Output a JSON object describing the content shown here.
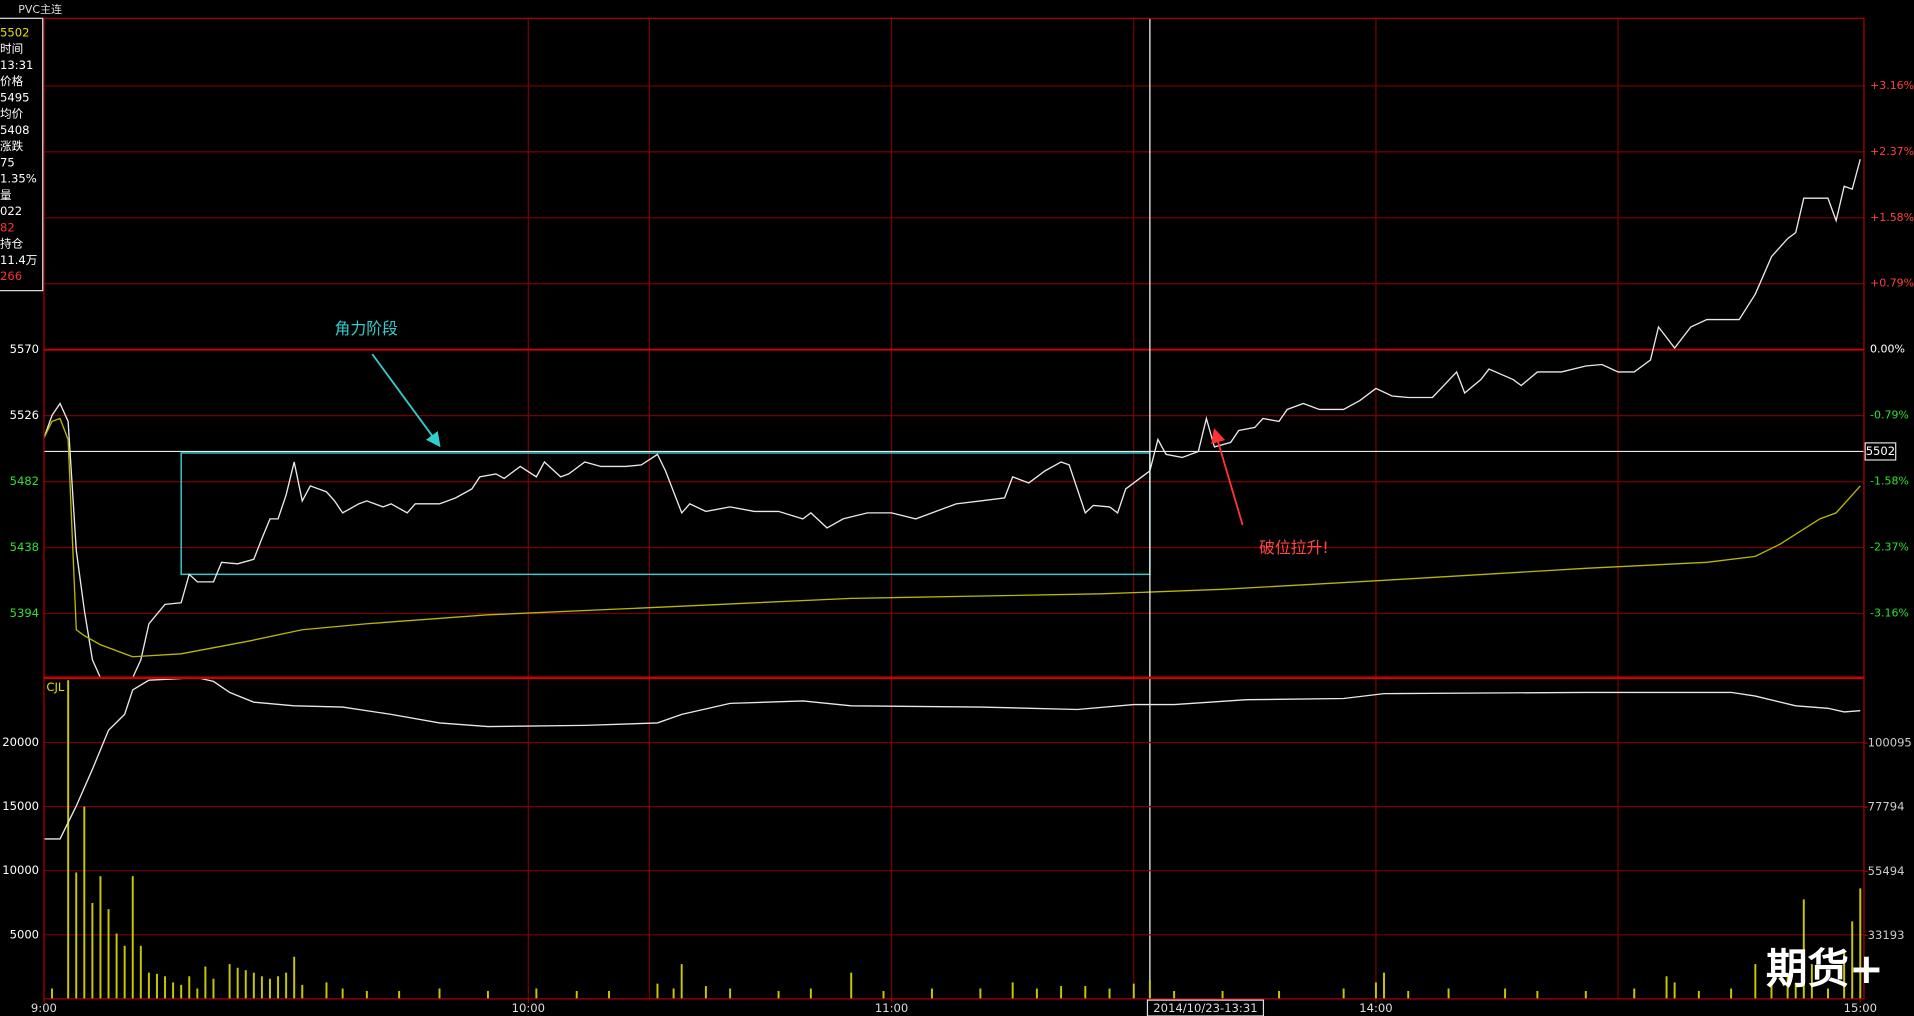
{
  "title": "PVC主连",
  "watermark": "期货+",
  "info_panel": [
    {
      "text": "5502",
      "color": "#e0e000"
    },
    {
      "text": "时间",
      "color": "#ffffff"
    },
    {
      "text": "13:31",
      "color": "#ffffff"
    },
    {
      "text": "价格",
      "color": "#ffffff"
    },
    {
      "text": "5495",
      "color": "#ffffff"
    },
    {
      "text": "均价",
      "color": "#ffffff"
    },
    {
      "text": "5408",
      "color": "#ffffff"
    },
    {
      "text": "涨跌",
      "color": "#ffffff"
    },
    {
      "text": "75",
      "color": "#ffffff"
    },
    {
      "text": "1.35%",
      "color": "#ffffff"
    },
    {
      "text": "量",
      "color": "#ffffff"
    },
    {
      "text": "022",
      "color": "#ffffff"
    },
    {
      "text": "82",
      "color": "#ff3030"
    },
    {
      "text": "持仓",
      "color": "#ffffff"
    },
    {
      "text": "11.4万",
      "color": "#ffffff"
    },
    {
      "text": "266",
      "color": "#ff3030"
    }
  ],
  "chart_data": [
    {
      "type": "line",
      "annotations": [
        "角力阶段",
        "破位拉升!"
      ],
      "xlim": [
        0,
        225
      ],
      "xgrid": [
        60,
        75,
        105,
        135,
        165,
        195
      ],
      "ylim": [
        5351,
        5791
      ],
      "yticks": [
        5394,
        5438,
        5482,
        5526,
        5570
      ],
      "y2lim": [
        -3.93,
        3.97
      ],
      "y2ticks": [
        {
          "value": 3.16,
          "label": "+3.16%"
        },
        {
          "value": 2.37,
          "label": "+2.37%"
        },
        {
          "value": 1.58,
          "label": "+1.58%"
        },
        {
          "value": 0.79,
          "label": "+0.79%"
        },
        {
          "value": 0,
          "label": "0.00%"
        },
        {
          "value": -0.79,
          "label": "-0.79%"
        },
        {
          "value": -1.58,
          "label": "-1.58%"
        },
        {
          "value": -2.37,
          "label": "-2.37%"
        },
        {
          "value": -3.16,
          "label": "-3.16%"
        }
      ],
      "reference_line": {
        "value": 5502,
        "color": "#e8e8e8"
      },
      "highlight": {
        "xlim": [
          17,
          137
        ],
        "ylim": [
          5420,
          5501
        ],
        "color": "#33cccc"
      },
      "cursor": {
        "x": 137,
        "label": "2014/10/23-13:31"
      },
      "series": [
        {
          "name": "价格",
          "color": "#e8e8e8",
          "x": [
            0,
            1,
            2,
            3,
            4,
            5,
            6,
            7,
            11,
            12,
            13,
            15,
            17,
            18,
            19,
            21,
            22,
            24,
            26,
            27,
            28,
            29,
            30,
            31,
            32,
            33,
            35,
            36,
            37,
            39,
            40,
            42,
            43,
            45,
            46,
            49,
            51,
            53,
            54,
            56,
            57,
            59,
            61,
            62,
            64,
            65,
            67,
            69,
            72,
            74,
            76,
            77,
            79,
            80,
            82,
            85,
            88,
            91,
            94,
            95,
            97,
            99,
            102,
            105,
            108,
            110,
            113,
            116,
            119,
            120,
            122,
            124,
            126,
            127,
            129,
            130,
            132,
            133,
            134,
            137,
            138,
            139,
            141,
            143,
            144,
            145,
            147,
            148,
            150,
            151,
            153,
            154,
            156,
            158,
            161,
            163,
            165,
            167,
            169,
            172,
            175,
            176,
            178,
            179,
            182,
            183,
            185,
            188,
            191,
            193,
            195,
            197,
            199,
            200,
            202,
            204,
            206,
            208,
            210,
            212,
            214,
            216,
            217,
            218,
            221,
            222,
            223,
            224,
            225
          ],
          "values": [
            5511,
            5526,
            5534,
            5522,
            5436,
            5396,
            5363,
            5351,
            5351,
            5363,
            5387,
            5400,
            5401,
            5420,
            5415,
            5415,
            5428,
            5427,
            5430,
            5444,
            5457,
            5457,
            5473,
            5495,
            5469,
            5479,
            5475,
            5469,
            5461,
            5467,
            5469,
            5465,
            5467,
            5461,
            5467,
            5467,
            5471,
            5477,
            5485,
            5487,
            5484,
            5492,
            5485,
            5495,
            5485,
            5487,
            5495,
            5492,
            5492,
            5493,
            5500,
            5489,
            5461,
            5467,
            5462,
            5465,
            5462,
            5462,
            5457,
            5461,
            5451,
            5457,
            5461,
            5461,
            5457,
            5461,
            5467,
            5469,
            5471,
            5485,
            5481,
            5489,
            5495,
            5493,
            5461,
            5466,
            5465,
            5461,
            5477,
            5489,
            5510,
            5500,
            5498,
            5502,
            5524,
            5505,
            5508,
            5516,
            5518,
            5524,
            5522,
            5530,
            5534,
            5530,
            5530,
            5536,
            5544,
            5539,
            5538,
            5538,
            5555,
            5541,
            5550,
            5557,
            5550,
            5546,
            5555,
            5555,
            5559,
            5560,
            5555,
            5555,
            5563,
            5585,
            5571,
            5585,
            5590,
            5590,
            5590,
            5607,
            5632,
            5644,
            5648,
            5671,
            5671,
            5656,
            5679,
            5677,
            5697
          ]
        },
        {
          "name": "均价",
          "color": "#b8b800",
          "x": [
            0,
            1,
            2,
            3,
            4,
            5,
            7,
            11,
            17,
            25,
            32,
            40,
            55,
            76,
            100,
            131,
            146,
            166,
            191,
            206,
            212,
            215,
            220,
            222,
            225
          ],
          "values": [
            5511,
            5522,
            5524,
            5510,
            5383,
            5379,
            5373,
            5365,
            5367,
            5375,
            5383,
            5387,
            5393,
            5398,
            5404,
            5407,
            5410,
            5416,
            5424,
            5428,
            5432,
            5440,
            5457,
            5461,
            5479
          ]
        }
      ]
    },
    {
      "type": "bar",
      "label": "CJL",
      "xlim": [
        0,
        225
      ],
      "xticks": [
        {
          "value": 0,
          "label": "9:00"
        },
        {
          "value": 60,
          "label": "10:00"
        },
        {
          "value": 105,
          "label": "11:00"
        },
        {
          "value": 165,
          "label": "14:00"
        },
        {
          "value": 225,
          "label": "15:00"
        }
      ],
      "ylim": [
        0,
        25050
      ],
      "yticks": [
        5000,
        10000,
        15000,
        20000
      ],
      "y2lim": [
        11105,
        122820
      ],
      "y2ticks": [
        33193,
        55494,
        77794,
        100095
      ],
      "series": [
        {
          "name": "CJL",
          "color": "#c8c800",
          "x": [
            1,
            3,
            4,
            5,
            6,
            7,
            8,
            9,
            10,
            11,
            12,
            13,
            14,
            15,
            16,
            17,
            18,
            19,
            20,
            21,
            23,
            24,
            25,
            26,
            27,
            28,
            29,
            30,
            31,
            32,
            35,
            37,
            40,
            44,
            49,
            55,
            61,
            66,
            70,
            76,
            78,
            79,
            82,
            85,
            91,
            95,
            100,
            104,
            110,
            116,
            120,
            123,
            126,
            129,
            132,
            135,
            137,
            140,
            146,
            153,
            161,
            165,
            166,
            169,
            174,
            181,
            185,
            191,
            197,
            201,
            202,
            205,
            209,
            212,
            214,
            216,
            217,
            218,
            219,
            221,
            223,
            224,
            225
          ],
          "values": [
            810,
            24860,
            9860,
            15000,
            7480,
            9570,
            7000,
            5100,
            4143,
            9570,
            4143,
            2048,
            1952,
            1762,
            1286,
            1095,
            1762,
            810,
            2524,
            1571,
            2714,
            2429,
            2238,
            2048,
            1762,
            1571,
            1762,
            2048,
            3286,
            1095,
            1286,
            810,
            619,
            619,
            810,
            619,
            810,
            619,
            619,
            1190,
            810,
            2714,
            1000,
            810,
            619,
            810,
            2048,
            619,
            810,
            810,
            1286,
            810,
            1000,
            1000,
            810,
            1190,
            1476,
            619,
            619,
            619,
            810,
            1286,
            2048,
            619,
            810,
            810,
            619,
            619,
            810,
            1762,
            1286,
            619,
            810,
            2714,
            1190,
            1762,
            1190,
            7762,
            2714,
            810,
            3667,
            6048,
            8619
          ]
        },
        {
          "name": "持仓",
          "color": "#e8e8e8",
          "axis": "y2",
          "x": [
            0,
            2,
            4,
            6,
            8,
            10,
            11,
            13,
            19,
            21,
            23,
            26,
            31,
            37,
            43,
            49,
            55,
            67,
            76,
            79,
            85,
            94,
            100,
            116,
            128,
            135,
            140,
            149,
            161,
            166,
            191,
            209,
            212,
            217,
            221,
            223,
            225
          ],
          "values": [
            66750,
            66750,
            78218,
            90962,
            104554,
            110076,
            118572,
            121970,
            122819,
            121545,
            117722,
            114324,
            113050,
            112625,
            110076,
            107103,
            105829,
            106253,
            107103,
            110076,
            113899,
            114749,
            113050,
            112625,
            111775,
            113475,
            113475,
            115174,
            115598,
            117297,
            117722,
            117722,
            116448,
            113050,
            112200,
            110926,
            111351
          ]
        }
      ]
    }
  ]
}
